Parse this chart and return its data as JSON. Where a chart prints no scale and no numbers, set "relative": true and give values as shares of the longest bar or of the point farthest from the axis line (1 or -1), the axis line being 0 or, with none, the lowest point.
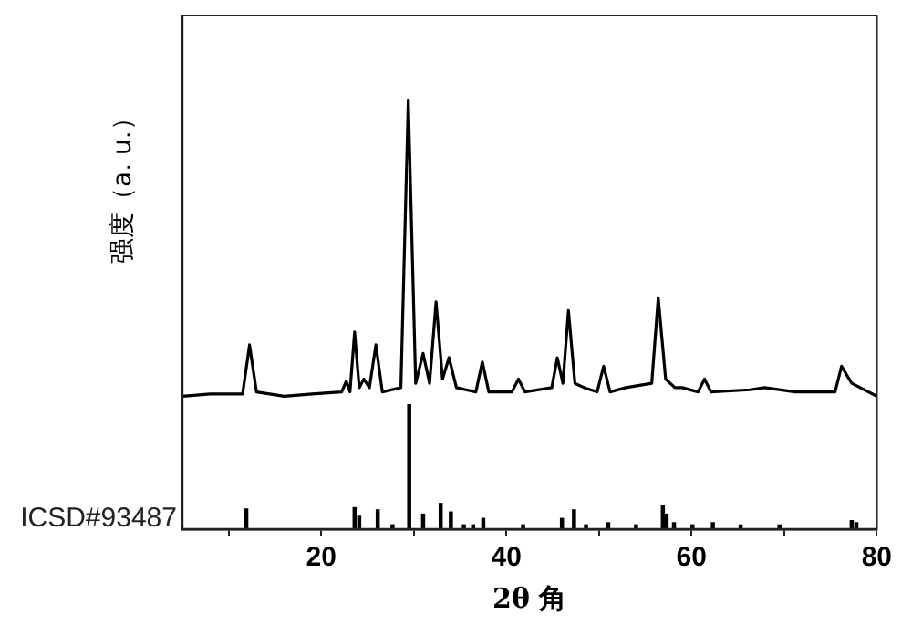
{
  "chart_data": {
    "type": "line",
    "relative": true,
    "xlabel": "2θ 角",
    "ylabel": "强度（a. u.）",
    "xlim": [
      5,
      80
    ],
    "xticks": [
      {
        "value": 10,
        "label": null
      },
      20,
      {
        "value": 30,
        "label": null
      },
      40,
      {
        "value": 50,
        "label": null
      },
      60,
      {
        "value": 70,
        "label": null
      },
      80
    ],
    "tick_labels": "x",
    "legend": false,
    "grid": false,
    "marker": "none",
    "line_style": "solid",
    "series": [
      {
        "color": "#000000",
        "x": [
          5,
          8,
          11.5,
          12.25,
          13,
          16,
          19,
          22.2,
          22.7,
          23.1,
          23.6,
          24.1,
          24.6,
          25.2,
          25.9,
          26.6,
          28.6,
          29.4,
          30.2,
          31.0,
          31.7,
          32.4,
          33.1,
          33.8,
          34.6,
          36.7,
          37.4,
          38.1,
          40.6,
          41.3,
          42,
          44.9,
          45.5,
          46.1,
          46.7,
          47.4,
          48.4,
          49.8,
          50.5,
          51.2,
          52.9,
          55.7,
          56.4,
          57.2,
          58.2,
          59.0,
          60.7,
          61.4,
          62.1,
          66.3,
          67.9,
          71.2,
          75.5,
          76.2,
          77.3,
          80
        ],
        "values": [
          0.31,
          0.315,
          0.315,
          0.43,
          0.32,
          0.31,
          0.315,
          0.32,
          0.345,
          0.32,
          0.46,
          0.33,
          0.35,
          0.33,
          0.43,
          0.32,
          0.33,
          1.0,
          0.34,
          0.41,
          0.34,
          0.53,
          0.35,
          0.4,
          0.33,
          0.32,
          0.39,
          0.32,
          0.32,
          0.35,
          0.32,
          0.33,
          0.4,
          0.34,
          0.51,
          0.34,
          0.33,
          0.32,
          0.38,
          0.32,
          0.33,
          0.34,
          0.54,
          0.35,
          0.33,
          0.33,
          0.32,
          0.35,
          0.32,
          0.325,
          0.33,
          0.32,
          0.32,
          0.38,
          0.34,
          0.31
        ]
      },
      {
        "type": "bar",
        "name": "ICSD#93487",
        "color": "#000000",
        "x": [
          11.9,
          23.6,
          24.1,
          26.1,
          27.7,
          29.5,
          31.0,
          32.9,
          34.0,
          35.4,
          36.4,
          37.5,
          41.8,
          46.0,
          47.3,
          48.6,
          51.0,
          54.0,
          56.9,
          57.3,
          58.1,
          60.1,
          62.3,
          65.3,
          69.5,
          77.3,
          77.8
        ],
        "values": [
          0.047,
          0.05,
          0.03,
          0.045,
          0.01,
          0.29,
          0.035,
          0.06,
          0.04,
          0.01,
          0.01,
          0.025,
          0.01,
          0.025,
          0.045,
          0.01,
          0.015,
          0.01,
          0.055,
          0.035,
          0.015,
          0.01,
          0.015,
          0.01,
          0.01,
          0.02,
          0.015
        ]
      }
    ]
  }
}
